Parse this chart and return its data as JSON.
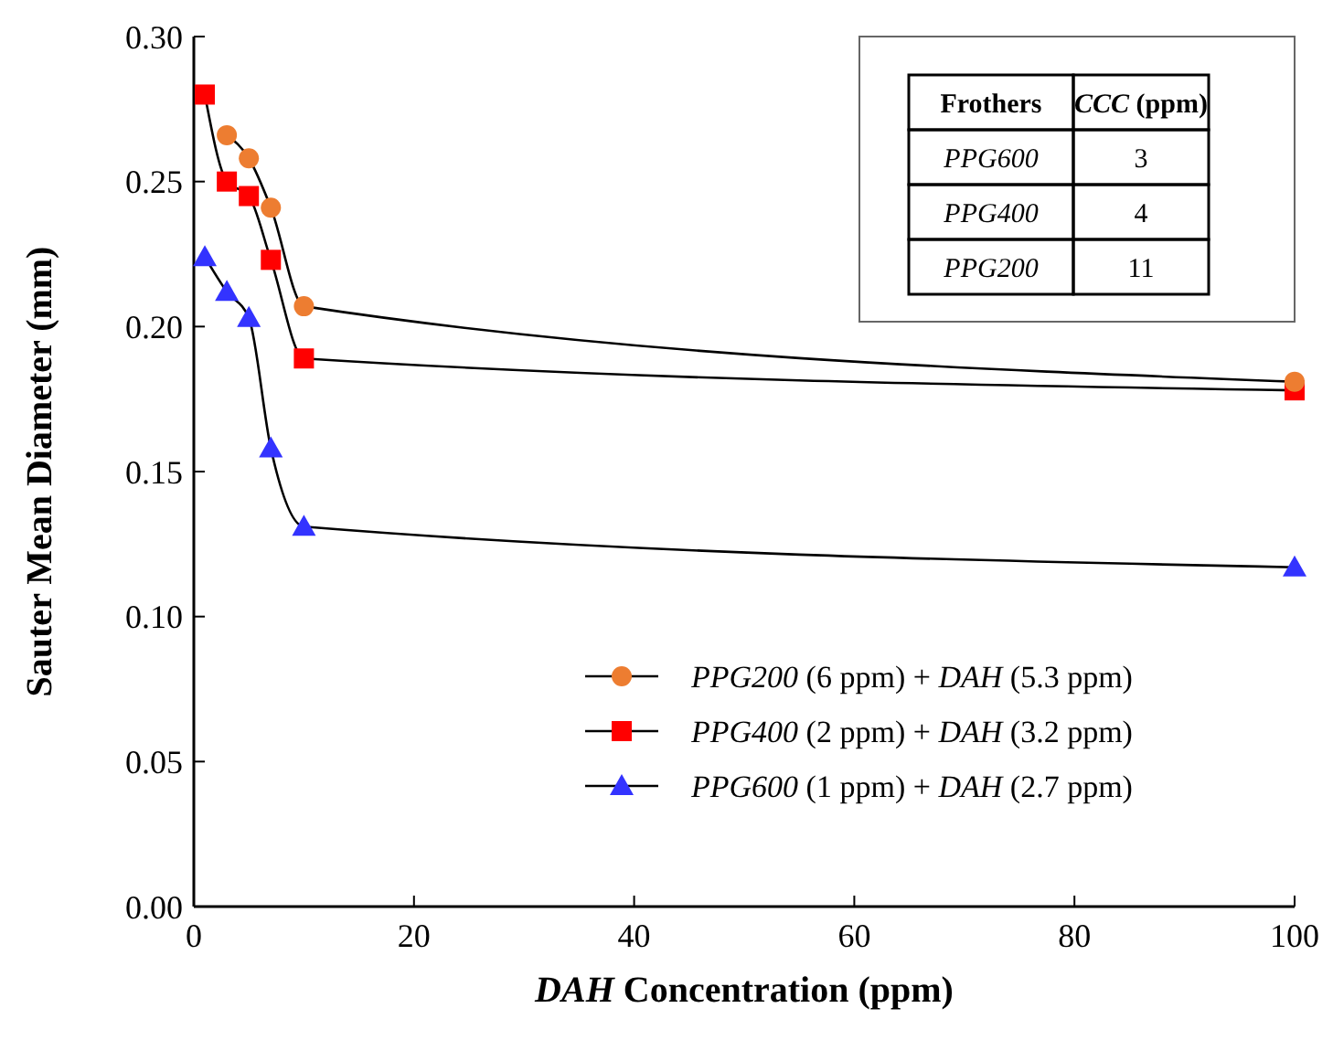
{
  "chart_data": {
    "type": "line",
    "xlabel": "DAH Concentration (ppm)",
    "ylabel": "Sauter Mean Diameter (mm)",
    "x": [
      1,
      3,
      5,
      7,
      10,
      100
    ],
    "series": [
      {
        "name": "PPG200 (6 ppm) + DAH (5.3 ppm)",
        "color": "#ed7d31",
        "marker": "circle",
        "values": [
          null,
          0.266,
          0.258,
          0.241,
          0.207,
          0.181
        ]
      },
      {
        "name": "PPG400 (2 ppm) + DAH (3.2 ppm)",
        "color": "#ff0000",
        "marker": "square",
        "values": [
          0.28,
          0.25,
          0.245,
          0.223,
          0.189,
          0.178
        ]
      },
      {
        "name": "PPG600 (1 ppm) + DAH (2.7 ppm)",
        "color": "#3333ff",
        "marker": "triangle",
        "values": [
          0.224,
          0.212,
          0.203,
          0.158,
          0.131,
          0.117
        ]
      }
    ],
    "xlim": [
      0,
      100
    ],
    "xticks": [
      0,
      20,
      40,
      60,
      80,
      100
    ],
    "ylim": [
      0,
      0.3
    ],
    "yticks": [
      {
        "value": 0,
        "label": "0.00"
      },
      {
        "value": 0.05,
        "label": "0.05"
      },
      {
        "value": 0.1,
        "label": "0.10"
      },
      {
        "value": 0.15,
        "label": "0.15"
      },
      {
        "value": 0.2,
        "label": "0.20"
      },
      {
        "value": 0.25,
        "label": "0.25"
      },
      {
        "value": 0.3,
        "label": "0.30"
      }
    ],
    "grid": false,
    "legend": "bottom right",
    "line_style": "solid",
    "annotations": [
      "Frothers",
      "CCC (ppm)",
      "PPG600",
      "3",
      "PPG400",
      "4",
      "PPG200",
      "11"
    ]
  }
}
